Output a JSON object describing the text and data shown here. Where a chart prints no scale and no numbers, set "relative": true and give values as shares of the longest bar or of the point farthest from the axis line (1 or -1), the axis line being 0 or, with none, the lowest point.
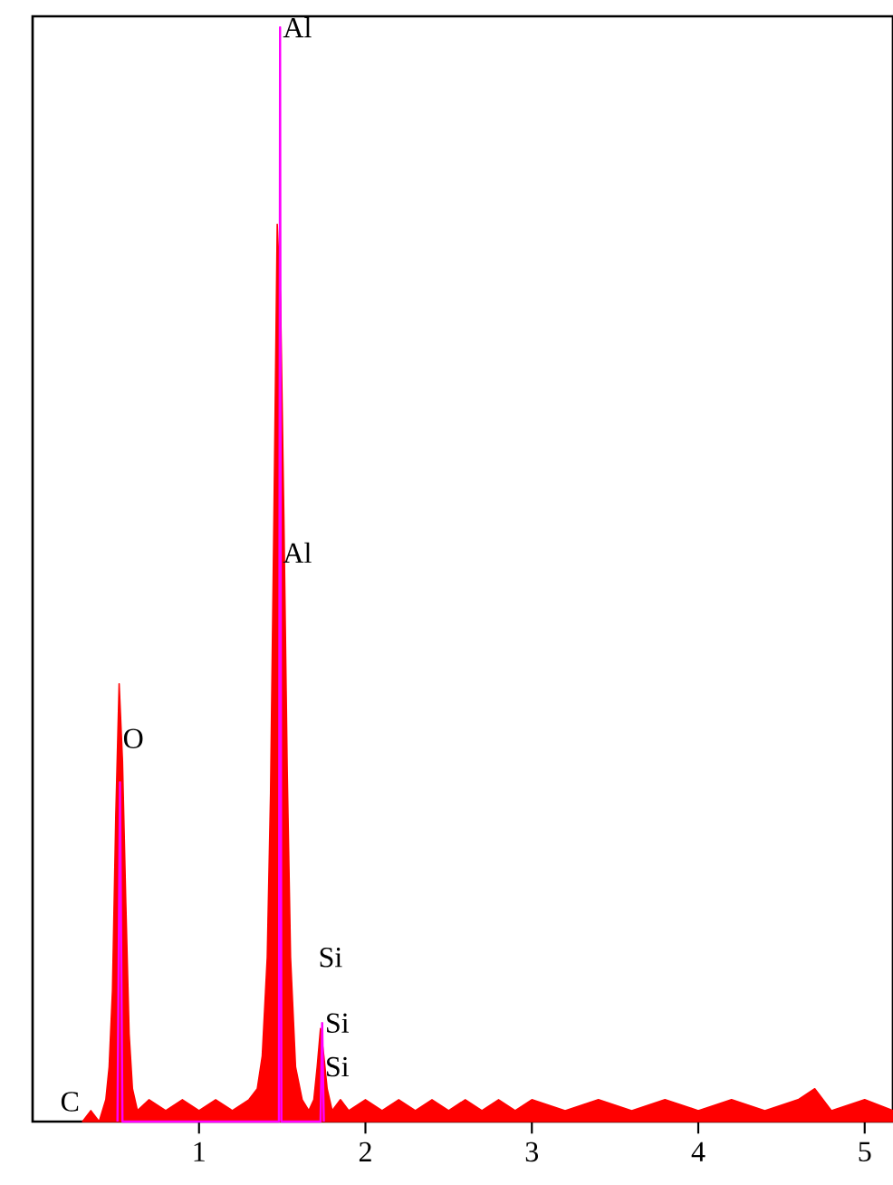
{
  "chart_data": {
    "type": "area",
    "relative": true,
    "xlim": [
      0,
      5.17
    ],
    "xticks": [
      1,
      2,
      3,
      4,
      5
    ],
    "tick_labels": "x",
    "series": [
      {
        "color": "#ff0000",
        "x": [
          0.3,
          0.35,
          0.4,
          0.44,
          0.46,
          0.48,
          0.5,
          0.52,
          0.54,
          0.56,
          0.58,
          0.6,
          0.63,
          0.7,
          0.8,
          0.9,
          1.0,
          1.1,
          1.2,
          1.3,
          1.35,
          1.38,
          1.41,
          1.43,
          1.45,
          1.47,
          1.49,
          1.51,
          1.53,
          1.55,
          1.58,
          1.62,
          1.66,
          1.69,
          1.71,
          1.73,
          1.75,
          1.77,
          1.8,
          1.85,
          1.9,
          2.0,
          2.1,
          2.2,
          2.3,
          2.4,
          2.5,
          2.6,
          2.7,
          2.8,
          2.9,
          3.0,
          3.2,
          3.4,
          3.6,
          3.8,
          4.0,
          4.2,
          4.4,
          4.6,
          4.7,
          4.8,
          5.0,
          5.17
        ],
        "values": [
          0.0,
          0.01,
          0.0,
          0.02,
          0.05,
          0.12,
          0.28,
          0.4,
          0.33,
          0.2,
          0.08,
          0.03,
          0.01,
          0.02,
          0.01,
          0.02,
          0.01,
          0.02,
          0.01,
          0.02,
          0.03,
          0.06,
          0.15,
          0.3,
          0.55,
          0.82,
          0.75,
          0.55,
          0.32,
          0.15,
          0.05,
          0.02,
          0.01,
          0.02,
          0.05,
          0.085,
          0.06,
          0.03,
          0.01,
          0.02,
          0.01,
          0.02,
          0.01,
          0.02,
          0.01,
          0.02,
          0.01,
          0.02,
          0.01,
          0.02,
          0.01,
          0.02,
          0.01,
          0.02,
          0.01,
          0.02,
          0.01,
          0.02,
          0.01,
          0.02,
          0.03,
          0.01,
          0.02,
          0.01
        ]
      },
      {
        "type": "line",
        "color": "#ff00ff",
        "x": [
          0.51,
          0.525,
          0.54,
          1.48,
          1.487,
          1.495,
          1.73,
          1.74,
          1.75
        ],
        "values": [
          0.0,
          0.31,
          0.0,
          0.0,
          1.0,
          0.0,
          0.0,
          0.09,
          0.0
        ]
      }
    ],
    "annotations": [
      {
        "text": "Al",
        "x": 1.487,
        "y": 1.0
      },
      {
        "text": "Al",
        "x": 1.487,
        "y": 0.52
      },
      {
        "text": "O",
        "x": 0.525,
        "y": 0.35
      },
      {
        "text": "C",
        "x": 0.3,
        "y": 0.0
      },
      "Si",
      {
        "text": "Si",
        "x": 1.74,
        "y": 0.09
      },
      {
        "text": "Si",
        "x": 1.74,
        "y": 0.05
      }
    ]
  }
}
